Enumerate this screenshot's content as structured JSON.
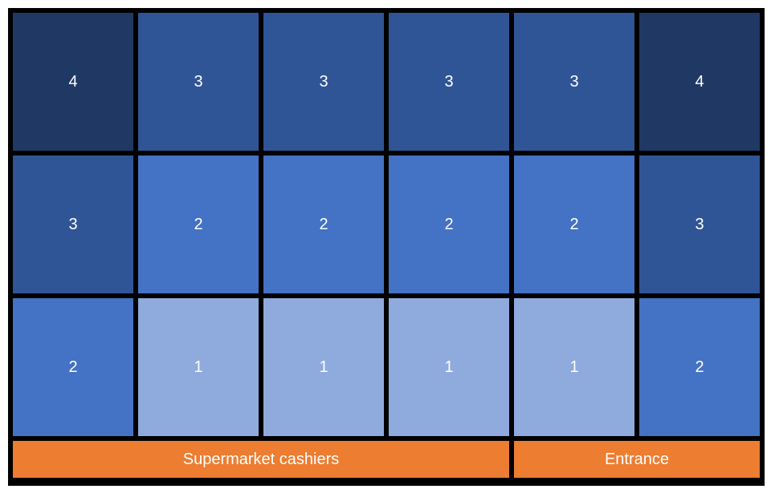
{
  "grid": {
    "rows": [
      [
        4,
        3,
        3,
        3,
        3,
        4
      ],
      [
        3,
        2,
        2,
        2,
        2,
        3
      ],
      [
        2,
        1,
        1,
        1,
        1,
        2
      ]
    ]
  },
  "level_colors": {
    "1": "#8FAADC",
    "2": "#4472C4",
    "3": "#2F5597",
    "4": "#203864"
  },
  "labels": {
    "cashiers": "Supermarket cashiers",
    "entrance": "Entrance"
  },
  "colors": {
    "bar": "#ED7D31",
    "border": "#000000"
  }
}
